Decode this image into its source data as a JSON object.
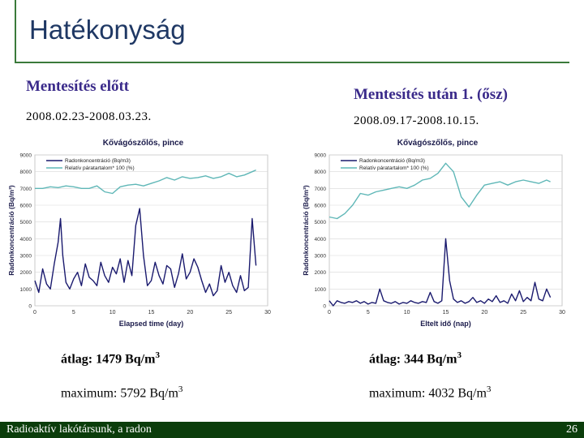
{
  "slide": {
    "title": "Hatékonyság",
    "left_heading": "Mentesítés előtt",
    "right_heading": "Mentesítés után 1. (ősz)",
    "left_dates": "2008.02.23-2008.03.23.",
    "right_dates": "2008.09.17-2008.10.15.",
    "left_avg_label": "átlag: 1479 Bq/m",
    "left_avg_sup": "3",
    "left_max_label": "maximum: 5792 Bq/m",
    "left_max_sup": "3",
    "right_avg_label": "átlag: 344 Bq/m",
    "right_avg_sup": "3",
    "right_max_label": "maximum: 4032 Bq/m",
    "right_max_sup": "3",
    "footer_left": "Radioaktív lakótársunk, a radon",
    "footer_right": "26",
    "colors": {
      "radon": "#1a1a6e",
      "humidity": "#5fb7b7",
      "footer_bg": "#0b3d0b",
      "heading": "#3a2a8a"
    }
  },
  "chart_data": [
    {
      "type": "line",
      "title": "Kővágószőlős, pince",
      "xlabel": "Elapsed time (day)",
      "ylabel": "Radonkoncentráció (Bq/m³)",
      "xlim": [
        0,
        30
      ],
      "ylim": [
        0,
        9000
      ],
      "xticks": [
        "0",
        "5",
        "10",
        "15",
        "20",
        "25",
        "30"
      ],
      "yticks": [
        "0",
        "1000",
        "2000",
        "3000",
        "4000",
        "5000",
        "6000",
        "7000",
        "8000",
        "9000"
      ],
      "legend": "top-left",
      "series": [
        {
          "name": "Radonkoncentráció (Bq/m3)",
          "x": [
            0,
            0.5,
            1,
            1.5,
            2,
            2.5,
            3,
            3.3,
            3.6,
            4,
            4.5,
            5,
            5.5,
            6,
            6.5,
            7,
            7.5,
            8,
            8.5,
            9,
            9.5,
            10,
            10.5,
            11,
            11.5,
            12,
            12.5,
            13,
            13.5,
            14,
            14.5,
            15,
            15.5,
            16,
            16.5,
            17,
            17.5,
            18,
            18.5,
            19,
            19.5,
            20,
            20.5,
            21,
            21.5,
            22,
            22.5,
            23,
            23.5,
            24,
            24.5,
            25,
            25.5,
            26,
            26.5,
            27,
            27.5,
            28,
            28.5
          ],
          "values": [
            1500,
            800,
            2200,
            1300,
            1000,
            2500,
            3800,
            5200,
            3000,
            1400,
            1000,
            1600,
            2000,
            1200,
            2500,
            1700,
            1500,
            1200,
            2600,
            1800,
            1400,
            2300,
            1900,
            2800,
            1400,
            2700,
            1800,
            4800,
            5800,
            3000,
            1200,
            1500,
            2600,
            1800,
            1300,
            2400,
            2200,
            1100,
            1900,
            3100,
            1600,
            2000,
            2800,
            2300,
            1500,
            800,
            1300,
            600,
            900,
            2400,
            1400,
            2000,
            1200,
            800,
            1800,
            900,
            1100,
            5200,
            2400
          ]
        },
        {
          "name": "Relatív páratartalom* 100 (%)",
          "x": [
            0,
            1,
            2,
            3,
            4,
            5,
            6,
            7,
            8,
            9,
            10,
            11,
            12,
            13,
            14,
            15,
            16,
            17,
            18,
            19,
            20,
            21,
            22,
            23,
            24,
            25,
            26,
            27,
            28,
            28.5
          ],
          "values": [
            7000,
            7000,
            7100,
            7050,
            7150,
            7100,
            7000,
            7000,
            7150,
            6800,
            6700,
            7100,
            7200,
            7250,
            7150,
            7300,
            7450,
            7650,
            7500,
            7700,
            7600,
            7650,
            7750,
            7600,
            7700,
            7900,
            7700,
            7800,
            8000,
            8100
          ]
        }
      ]
    },
    {
      "type": "line",
      "title": "Kővágószőlős, pince",
      "xlabel": "Eltelt idő (nap)",
      "ylabel": "Radonkoncentráció (Bq/m³)",
      "xlim": [
        0,
        30
      ],
      "ylim": [
        0,
        9000
      ],
      "xticks": [
        "0",
        "5",
        "10",
        "15",
        "20",
        "25",
        "30"
      ],
      "yticks": [
        "0",
        "1000",
        "2000",
        "3000",
        "4000",
        "5000",
        "6000",
        "7000",
        "8000",
        "9000"
      ],
      "legend": "top-left",
      "series": [
        {
          "name": "Radonkoncentráció (Bq/m3)",
          "x": [
            0,
            0.5,
            1,
            1.5,
            2,
            2.5,
            3,
            3.5,
            4,
            4.5,
            5,
            5.5,
            6,
            6.5,
            7,
            7.5,
            8,
            8.5,
            9,
            9.5,
            10,
            10.5,
            11,
            11.5,
            12,
            12.5,
            13,
            13.5,
            14,
            14.5,
            15,
            15.5,
            16,
            16.5,
            17,
            17.5,
            18,
            18.5,
            19,
            19.5,
            20,
            20.5,
            21,
            21.5,
            22,
            22.5,
            23,
            23.5,
            24,
            24.5,
            25,
            25.5,
            26,
            26.5,
            27,
            27.5,
            28,
            28.5
          ],
          "values": [
            300,
            0,
            300,
            200,
            150,
            250,
            200,
            300,
            150,
            250,
            100,
            200,
            150,
            1000,
            300,
            200,
            150,
            250,
            100,
            200,
            150,
            300,
            200,
            150,
            250,
            200,
            800,
            250,
            150,
            300,
            4000,
            1500,
            400,
            200,
            300,
            150,
            250,
            500,
            200,
            300,
            150,
            400,
            250,
            600,
            200,
            300,
            150,
            700,
            300,
            900,
            250,
            500,
            300,
            1400,
            400,
            300,
            1000,
            500
          ]
        },
        {
          "name": "Relatív páratartalom* 100 (%)",
          "x": [
            0,
            1,
            2,
            3,
            4,
            5,
            6,
            7,
            8,
            9,
            10,
            11,
            12,
            13,
            14,
            15,
            16,
            17,
            18,
            19,
            20,
            21,
            22,
            23,
            24,
            25,
            26,
            27,
            28,
            28.5
          ],
          "values": [
            5300,
            5200,
            5500,
            6000,
            6700,
            6600,
            6800,
            6900,
            7000,
            7100,
            7000,
            7200,
            7500,
            7600,
            7900,
            8500,
            8000,
            6500,
            5900,
            6600,
            7200,
            7300,
            7400,
            7200,
            7400,
            7500,
            7400,
            7300,
            7500,
            7400
          ]
        }
      ]
    }
  ]
}
